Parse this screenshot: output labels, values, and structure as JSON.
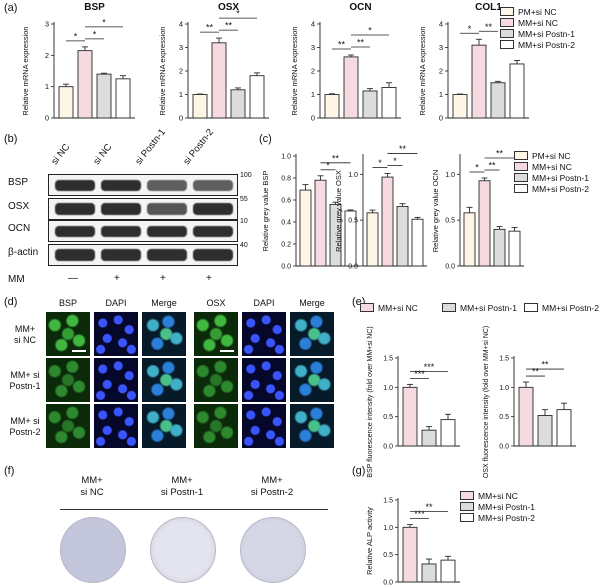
{
  "colors": {
    "pm_si_nc": "#fdf5e6",
    "mm_si_nc": "#f5dbe0",
    "mm_si_postn1": "#dcdcdc",
    "mm_si_postn2": "#ffffff",
    "outline": "#2a2a2a",
    "blot_band": "#2e2e2e",
    "green_stain": "#1e8a2a",
    "blue_stain": "#1f33b8",
    "merge_stain": "#1f7fa0",
    "dish_fill": "#d2d4e6"
  },
  "panels": {
    "a": "(a)",
    "b": "(b)",
    "c": "(c)",
    "d": "(d)",
    "e": "(e)",
    "f": "(f)",
    "g": "(g)"
  },
  "legend_a": [
    "PM+si NC",
    "MM+si NC",
    "MM+si Postn-1",
    "MM+si Postn-2"
  ],
  "legend_c": [
    "PM+si NC",
    "MM+si NC",
    "MM+si Postn-1",
    "MM+si Postn-2"
  ],
  "legend_e": [
    "MM+si NC",
    "MM+si Postn-1",
    "MM+si Postn-2"
  ],
  "legend_g": [
    "MM+si NC",
    "MM+si Postn-1",
    "MM+si Postn-2"
  ],
  "blot": {
    "lanes": [
      "si NC",
      "si NC",
      "si Postn-1",
      "si Postn-2"
    ],
    "rows": [
      "BSP",
      "OSX",
      "OCN",
      "β-actin"
    ],
    "mw": [
      "100",
      "55",
      "10",
      "40"
    ],
    "mm_label": "MM",
    "mm_signs": [
      "—",
      "+",
      "+",
      "+"
    ]
  },
  "micro": {
    "col_headers": [
      "BSP",
      "DAPI",
      "Merge",
      "OSX",
      "DAPI",
      "Merge"
    ],
    "row_labels": [
      [
        "MM+",
        "si NC"
      ],
      [
        "MM+ si",
        "Postn-1"
      ],
      [
        "MM+ si",
        "Postn-2"
      ]
    ]
  },
  "dishes": {
    "labels": [
      [
        "MM+",
        "si NC"
      ],
      [
        "MM+",
        "si Postn-1"
      ],
      [
        "MM+",
        "si Postn-2"
      ]
    ]
  },
  "chart_data": [
    {
      "id": "a-bsp",
      "type": "bar",
      "title": "BSP",
      "ylabel": "Relative mRNA expression",
      "ylim": [
        0,
        3
      ],
      "yticks": [
        0,
        1,
        2,
        3
      ],
      "categories": [
        "PM+si NC",
        "MM+si NC",
        "MM+si Postn-1",
        "MM+si Postn-2"
      ],
      "values": [
        1.0,
        2.15,
        1.4,
        1.25
      ],
      "errors": [
        0.08,
        0.12,
        0.03,
        0.1
      ],
      "sig": [
        {
          "from": 0,
          "to": 1,
          "label": "*"
        },
        {
          "from": 1,
          "to": 2,
          "label": "*"
        },
        {
          "from": 1,
          "to": 3,
          "label": "*"
        }
      ]
    },
    {
      "id": "a-osx",
      "type": "bar",
      "title": "OSX",
      "ylabel": "Relative mRNA expression",
      "ylim": [
        0,
        4
      ],
      "yticks": [
        0,
        1,
        2,
        3,
        4
      ],
      "categories": [
        "PM+si NC",
        "MM+si NC",
        "MM+si Postn-1",
        "MM+si Postn-2"
      ],
      "values": [
        1.0,
        3.2,
        1.2,
        1.8
      ],
      "errors": [
        0.02,
        0.2,
        0.08,
        0.12
      ],
      "sig": [
        {
          "from": 0,
          "to": 1,
          "label": "**"
        },
        {
          "from": 1,
          "to": 2,
          "label": "**"
        },
        {
          "from": 1,
          "to": 3,
          "label": "*"
        }
      ]
    },
    {
      "id": "a-ocn",
      "type": "bar",
      "title": "OCN",
      "ylabel": "Relative mRNA expression",
      "ylim": [
        0,
        4
      ],
      "yticks": [
        0,
        1,
        2,
        3,
        4
      ],
      "categories": [
        "PM+si NC",
        "MM+si NC",
        "MM+si Postn-1",
        "MM+si Postn-2"
      ],
      "values": [
        1.0,
        2.6,
        1.15,
        1.3
      ],
      "errors": [
        0.03,
        0.08,
        0.1,
        0.2
      ],
      "sig": [
        {
          "from": 0,
          "to": 1,
          "label": "**"
        },
        {
          "from": 1,
          "to": 2,
          "label": "**"
        },
        {
          "from": 1,
          "to": 3,
          "label": "*"
        }
      ]
    },
    {
      "id": "a-col1",
      "type": "bar",
      "title": "COL1",
      "ylabel": "Relative mRNA expression",
      "ylim": [
        0,
        4
      ],
      "yticks": [
        0,
        1,
        2,
        3,
        4
      ],
      "categories": [
        "PM+si NC",
        "MM+si NC",
        "MM+si Postn-1",
        "MM+si Postn-2"
      ],
      "values": [
        1.0,
        3.1,
        1.5,
        2.3
      ],
      "errors": [
        0.02,
        0.25,
        0.06,
        0.15
      ],
      "sig": [
        {
          "from": 0,
          "to": 1,
          "label": "*"
        },
        {
          "from": 1,
          "to": 2,
          "label": "**"
        }
      ]
    },
    {
      "id": "c-bsp",
      "type": "bar",
      "title": "",
      "ylabel": "Relative grey value BSP",
      "ylim": [
        0,
        1.0
      ],
      "yticks": [
        0.0,
        0.2,
        0.4,
        0.6,
        0.8,
        1.0
      ],
      "categories": [
        "PM+si NC",
        "MM+si NC",
        "MM+si Postn-1",
        "MM+si Postn-2"
      ],
      "values": [
        0.69,
        0.78,
        0.56,
        0.5
      ],
      "errors": [
        0.05,
        0.04,
        0.02,
        0.01
      ],
      "sig": [
        {
          "from": 1,
          "to": 2,
          "label": "*"
        },
        {
          "from": 1,
          "to": 3,
          "label": "**"
        }
      ]
    },
    {
      "id": "c-osx",
      "type": "bar",
      "title": "",
      "ylabel": "Relative grey value OSX",
      "ylim": [
        0,
        1.2
      ],
      "yticks": [
        0.0,
        0.5,
        1.0
      ],
      "categories": [
        "PM+si NC",
        "MM+si NC",
        "MM+si Postn-1",
        "MM+si Postn-2"
      ],
      "values": [
        0.58,
        0.97,
        0.65,
        0.51
      ],
      "errors": [
        0.03,
        0.04,
        0.03,
        0.02
      ],
      "sig": [
        {
          "from": 0,
          "to": 1,
          "label": "*"
        },
        {
          "from": 1,
          "to": 2,
          "label": "*"
        },
        {
          "from": 1,
          "to": 3,
          "label": "**"
        }
      ]
    },
    {
      "id": "c-ocn",
      "type": "bar",
      "title": "",
      "ylabel": "Relative grey value OCN",
      "ylim": [
        0,
        1.2
      ],
      "yticks": [
        0.0,
        0.5,
        1.0
      ],
      "categories": [
        "PM+si NC",
        "MM+si NC",
        "MM+si Postn-1",
        "MM+si Postn-2"
      ],
      "values": [
        0.58,
        0.93,
        0.4,
        0.38
      ],
      "errors": [
        0.06,
        0.03,
        0.03,
        0.04
      ],
      "sig": [
        {
          "from": 0,
          "to": 1,
          "label": "*"
        },
        {
          "from": 1,
          "to": 2,
          "label": "**"
        },
        {
          "from": 1,
          "to": 3,
          "label": "**"
        }
      ]
    },
    {
      "id": "e-bsp",
      "type": "bar",
      "title": "",
      "ylabel": "BSP fluorescence intensity (fold over MM+si NC)",
      "ylim": [
        0,
        1.5
      ],
      "yticks": [
        0.0,
        0.5,
        1.0,
        1.5
      ],
      "categories": [
        "MM+si NC",
        "MM+si Postn-1",
        "MM+si Postn-2"
      ],
      "values": [
        1.0,
        0.27,
        0.45
      ],
      "errors": [
        0.05,
        0.06,
        0.09
      ],
      "sig": [
        {
          "from": 0,
          "to": 1,
          "label": "***"
        },
        {
          "from": 0,
          "to": 2,
          "label": "***"
        }
      ]
    },
    {
      "id": "e-osx",
      "type": "bar",
      "title": "",
      "ylabel": "OSX fluorescence intensity (fold over MM+si NC)",
      "ylim": [
        0,
        1.5
      ],
      "yticks": [
        0.0,
        0.5,
        1.0,
        1.5
      ],
      "categories": [
        "MM+si NC",
        "MM+si Postn-1",
        "MM+si Postn-2"
      ],
      "values": [
        1.0,
        0.52,
        0.62
      ],
      "errors": [
        0.09,
        0.1,
        0.11
      ],
      "sig": [
        {
          "from": 0,
          "to": 1,
          "label": "**"
        },
        {
          "from": 0,
          "to": 2,
          "label": "**"
        }
      ]
    },
    {
      "id": "g-alp",
      "type": "bar",
      "title": "",
      "ylabel": "Relative ALP activity",
      "ylim": [
        0,
        1.5
      ],
      "yticks": [
        0.0,
        0.5,
        1.0,
        1.5
      ],
      "categories": [
        "MM+si NC",
        "MM+si Postn-1",
        "MM+si Postn-2"
      ],
      "values": [
        1.0,
        0.33,
        0.4
      ],
      "errors": [
        0.05,
        0.09,
        0.07
      ],
      "sig": [
        {
          "from": 0,
          "to": 1,
          "label": "***"
        },
        {
          "from": 0,
          "to": 2,
          "label": "**"
        }
      ]
    }
  ]
}
